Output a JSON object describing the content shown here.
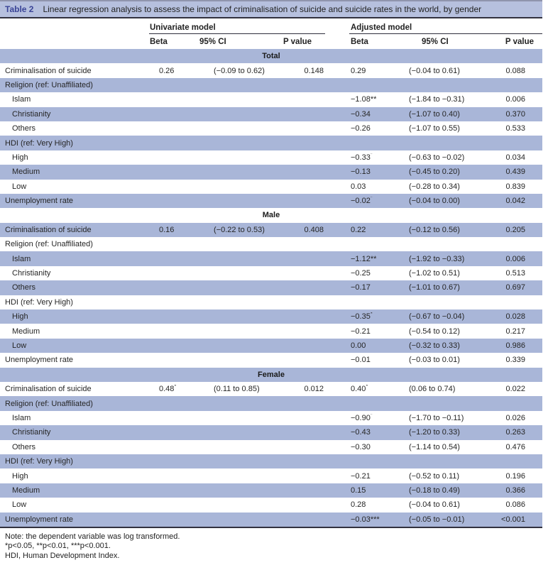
{
  "title": {
    "label": "Table 2",
    "caption": "Linear regression analysis to assess the impact of criminalisation of suicide and suicide rates in the world, by gender"
  },
  "columns": {
    "group1": "Univariate model",
    "group2": "Adjusted model",
    "sub": [
      "Beta",
      "95% CI",
      "P value",
      "Beta",
      "95% CI",
      "P value"
    ]
  },
  "table": {
    "rows": [
      {
        "type": "section",
        "label": "Total"
      },
      {
        "type": "data",
        "label": "Criminalisation of suicide",
        "indent": false,
        "u_beta": "0.26",
        "u_ci": "(−0.09 to 0.62)",
        "u_p": "0.148",
        "a_beta": "0.29",
        "a_ci": "(−0.04 to 0.61)",
        "a_p": "0.088"
      },
      {
        "type": "data",
        "label": "Religion (ref: Unaffiliated)",
        "indent": false,
        "u_beta": "",
        "u_ci": "",
        "u_p": "",
        "a_beta": "",
        "a_ci": "",
        "a_p": ""
      },
      {
        "type": "data",
        "label": "Islam",
        "indent": true,
        "u_beta": "",
        "u_ci": "",
        "u_p": "",
        "a_beta": "−1.08**",
        "a_ci": "(−1.84 to −0.31)",
        "a_p": "0.006"
      },
      {
        "type": "data",
        "label": "Christianity",
        "indent": true,
        "u_beta": "",
        "u_ci": "",
        "u_p": "",
        "a_beta": "−0.34",
        "a_ci": "(−1.07 to 0.40)",
        "a_p": "0.370"
      },
      {
        "type": "data",
        "label": "Others",
        "indent": true,
        "u_beta": "",
        "u_ci": "",
        "u_p": "",
        "a_beta": "−0.26",
        "a_ci": "(−1.07 to 0.55)",
        "a_p": "0.533"
      },
      {
        "type": "data",
        "label": "HDI (ref: Very High)",
        "indent": false,
        "u_beta": "",
        "u_ci": "",
        "u_p": "",
        "a_beta": "",
        "a_ci": "",
        "a_p": ""
      },
      {
        "type": "data",
        "label": "High",
        "indent": true,
        "u_beta": "",
        "u_ci": "",
        "u_p": "",
        "a_beta": "−0.33*",
        "a_ci": "(−0.63 to −0.02)",
        "a_p": "0.034"
      },
      {
        "type": "data",
        "label": "Medium",
        "indent": true,
        "u_beta": "",
        "u_ci": "",
        "u_p": "",
        "a_beta": "−0.13",
        "a_ci": "(−0.45 to 0.20)",
        "a_p": "0.439"
      },
      {
        "type": "data",
        "label": "Low",
        "indent": true,
        "u_beta": "",
        "u_ci": "",
        "u_p": "",
        "a_beta": "0.03",
        "a_ci": "(−0.28 to 0.34)",
        "a_p": "0.839"
      },
      {
        "type": "data",
        "label": "Unemployment rate",
        "indent": false,
        "u_beta": "",
        "u_ci": "",
        "u_p": "",
        "a_beta": "−0.02*",
        "a_ci": "(−0.04 to 0.00)",
        "a_p": "0.042"
      },
      {
        "type": "section",
        "label": "Male"
      },
      {
        "type": "data",
        "label": "Criminalisation of suicide",
        "indent": false,
        "u_beta": "0.16",
        "u_ci": "(−0.22 to 0.53)",
        "u_p": "0.408",
        "a_beta": "0.22",
        "a_ci": "(−0.12 to 0.56)",
        "a_p": "0.205"
      },
      {
        "type": "data",
        "label": "Religion (ref: Unaffiliated)",
        "indent": false,
        "u_beta": "",
        "u_ci": "",
        "u_p": "",
        "a_beta": "",
        "a_ci": "",
        "a_p": ""
      },
      {
        "type": "data",
        "label": "Islam",
        "indent": true,
        "u_beta": "",
        "u_ci": "",
        "u_p": "",
        "a_beta": "−1.12**",
        "a_ci": "(−1.92 to −0.33)",
        "a_p": "0.006"
      },
      {
        "type": "data",
        "label": "Christianity",
        "indent": true,
        "u_beta": "",
        "u_ci": "",
        "u_p": "",
        "a_beta": "−0.25",
        "a_ci": "(−1.02 to 0.51)",
        "a_p": "0.513"
      },
      {
        "type": "data",
        "label": "Others",
        "indent": true,
        "u_beta": "",
        "u_ci": "",
        "u_p": "",
        "a_beta": "−0.17",
        "a_ci": "(−1.01 to 0.67)",
        "a_p": "0.697"
      },
      {
        "type": "data",
        "label": "HDI (ref: Very High)",
        "indent": false,
        "u_beta": "",
        "u_ci": "",
        "u_p": "",
        "a_beta": "",
        "a_ci": "",
        "a_p": ""
      },
      {
        "type": "data",
        "label": "High",
        "indent": true,
        "u_beta": "",
        "u_ci": "",
        "u_p": "",
        "a_beta": "−0.35*",
        "a_ci": "(−0.67 to −0.04)",
        "a_p": "0.028"
      },
      {
        "type": "data",
        "label": "Medium",
        "indent": true,
        "u_beta": "",
        "u_ci": "",
        "u_p": "",
        "a_beta": "−0.21",
        "a_ci": "(−0.54 to 0.12)",
        "a_p": "0.217"
      },
      {
        "type": "data",
        "label": "Low",
        "indent": true,
        "u_beta": "",
        "u_ci": "",
        "u_p": "",
        "a_beta": "0.00",
        "a_ci": "(−0.32 to 0.33)",
        "a_p": "0.986"
      },
      {
        "type": "data",
        "label": "Unemployment rate",
        "indent": false,
        "u_beta": "",
        "u_ci": "",
        "u_p": "",
        "a_beta": "−0.01",
        "a_ci": "(−0.03 to 0.01)",
        "a_p": "0.339"
      },
      {
        "type": "section",
        "label": "Female"
      },
      {
        "type": "data",
        "label": "Criminalisation of suicide",
        "indent": false,
        "u_beta": "0.48*",
        "u_ci": "(0.11 to 0.85)",
        "u_p": "0.012",
        "a_beta": "0.40*",
        "a_ci": "(0.06 to 0.74)",
        "a_p": "0.022"
      },
      {
        "type": "data",
        "label": "Religion (ref: Unaffiliated)",
        "indent": false,
        "u_beta": "",
        "u_ci": "",
        "u_p": "",
        "a_beta": "",
        "a_ci": "",
        "a_p": ""
      },
      {
        "type": "data",
        "label": "Islam",
        "indent": true,
        "u_beta": "",
        "u_ci": "",
        "u_p": "",
        "a_beta": "−0.90*",
        "a_ci": "(−1.70 to −0.11)",
        "a_p": "0.026"
      },
      {
        "type": "data",
        "label": "Christianity",
        "indent": true,
        "u_beta": "",
        "u_ci": "",
        "u_p": "",
        "a_beta": "−0.43",
        "a_ci": "(−1.20 to 0.33)",
        "a_p": "0.263"
      },
      {
        "type": "data",
        "label": "Others",
        "indent": true,
        "u_beta": "",
        "u_ci": "",
        "u_p": "",
        "a_beta": "−0.30",
        "a_ci": "(−1.14 to 0.54)",
        "a_p": "0.476"
      },
      {
        "type": "data",
        "label": "HDI (ref: Very High)",
        "indent": false,
        "u_beta": "",
        "u_ci": "",
        "u_p": "",
        "a_beta": "",
        "a_ci": "",
        "a_p": ""
      },
      {
        "type": "data",
        "label": "High",
        "indent": true,
        "u_beta": "",
        "u_ci": "",
        "u_p": "",
        "a_beta": "−0.21",
        "a_ci": "(−0.52 to 0.11)",
        "a_p": "0.196"
      },
      {
        "type": "data",
        "label": "Medium",
        "indent": true,
        "u_beta": "",
        "u_ci": "",
        "u_p": "",
        "a_beta": "0.15",
        "a_ci": "(−0.18 to 0.49)",
        "a_p": "0.366"
      },
      {
        "type": "data",
        "label": "Low",
        "indent": true,
        "u_beta": "",
        "u_ci": "",
        "u_p": "",
        "a_beta": "0.28",
        "a_ci": "(−0.04 to 0.61)",
        "a_p": "0.086"
      },
      {
        "type": "data",
        "label": "Unemployment rate",
        "indent": false,
        "u_beta": "",
        "u_ci": "",
        "u_p": "",
        "a_beta": "−0.03***",
        "a_ci": "(−0.05 to −0.01)",
        "a_p": "<0.001"
      }
    ]
  },
  "notes": [
    "Note: the dependent variable was log transformed.",
    "*p<0.05, **p<0.01, ***p<0.001.",
    "HDI, Human Development Index."
  ],
  "colors": {
    "row_blue": "#a9b6d8",
    "title_bar_blue": "#b6c0de",
    "table_label_blue": "#3a4497",
    "rule_dark": "#32323f",
    "top_rule": "#8f94ad",
    "text": "#222222"
  }
}
